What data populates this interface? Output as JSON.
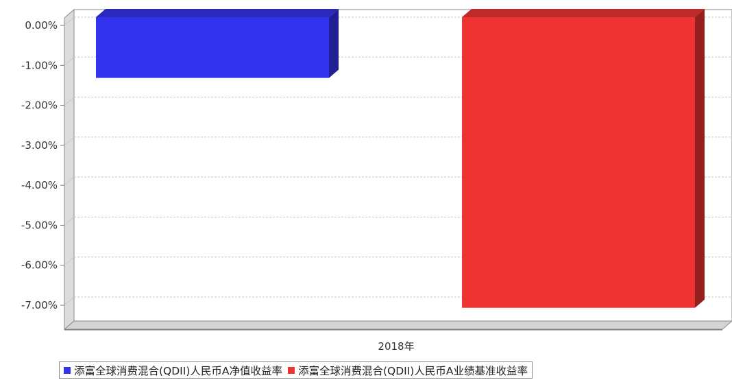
{
  "chart_data": {
    "type": "bar",
    "categories": [
      "2018年"
    ],
    "series": [
      {
        "name": "添富全球消费混合(QDII)人民币A净值收益率",
        "values": [
          -1.52
        ],
        "color": "#3333ee"
      },
      {
        "name": "添富全球消费混合(QDII)人民币A业绩基准收益率",
        "values": [
          -7.27
        ],
        "color": "#ee3333"
      }
    ],
    "ylim": [
      -7.6,
      0.15
    ],
    "yticks": [
      0,
      -1,
      -2,
      -3,
      -4,
      -5,
      -6,
      -7
    ],
    "ytick_labels": [
      "0.00%",
      "-1.00%",
      "-2.00%",
      "-3.00%",
      "-4.00%",
      "-5.00%",
      "-6.00%",
      "-7.00%"
    ],
    "grid": true,
    "legend_position": "bottom"
  }
}
